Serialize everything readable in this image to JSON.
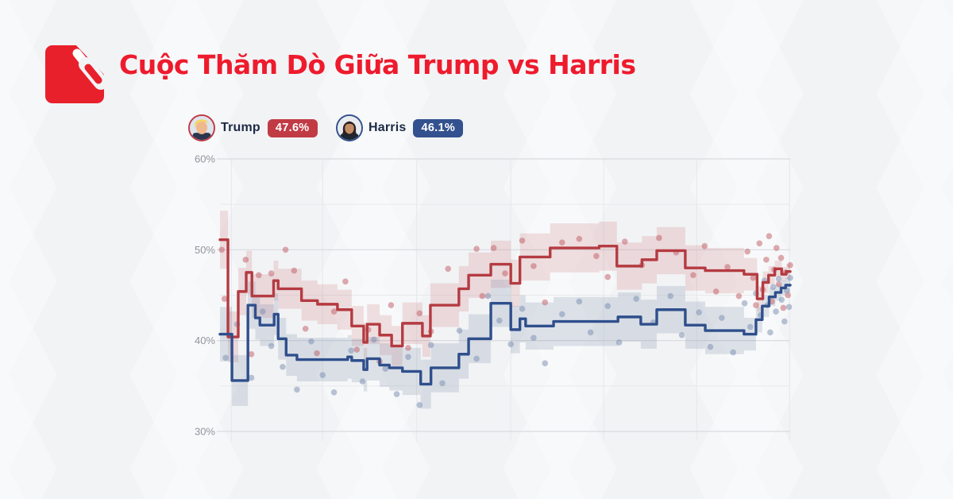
{
  "header": {
    "title": "Cuộc Thăm Dò Giữa Trump vs Harris",
    "title_color": "#ee1b2d",
    "logo_color": "#e8202c"
  },
  "legend": {
    "items": [
      {
        "id": "trump",
        "name": "Trump",
        "value": "47.6%",
        "badge_color": "#c13b45",
        "ring_color": "#c13b45"
      },
      {
        "id": "harris",
        "name": "Harris",
        "value": "46.1%",
        "badge_color": "#33518e",
        "ring_color": "#33518e"
      }
    ]
  },
  "colors": {
    "trump_line": "#b43b41",
    "trump_band": "rgba(186,70,77,0.15)",
    "trump_dot": "rgba(192,90,97,0.5)",
    "harris_line": "#2f4f8c",
    "harris_band": "rgba(110,130,162,0.20)",
    "harris_dot": "rgba(120,140,175,0.5)",
    "grid_major": "#d9dbdf",
    "grid_minor": "#e8e9ec",
    "axis_label": "#8f959d"
  },
  "chart_data": {
    "type": "line",
    "title": "Trump vs Harris polling average",
    "xlabel": "",
    "ylabel": "",
    "ylim": [
      30,
      60
    ],
    "grid": true,
    "legend_position": "top-left",
    "y_axis": {
      "major": [
        {
          "v": 60,
          "label": "60%"
        },
        {
          "v": 50,
          "label": "50%"
        },
        {
          "v": 40,
          "label": "40%"
        },
        {
          "v": 30,
          "label": "30%"
        }
      ],
      "minor": [
        55,
        45,
        35
      ]
    },
    "x_gridlines": [
      2,
      18,
      34.5,
      51,
      67.3,
      83.6,
      99.9
    ],
    "series": [
      {
        "name": "Trump",
        "final_value": 47.6,
        "points": [
          [
            0,
            51.1,
            3.2
          ],
          [
            1.4,
            40.4,
            2.8
          ],
          [
            3.2,
            45.4,
            2.6
          ],
          [
            4.6,
            47.5,
            2.4
          ],
          [
            5.6,
            44.9,
            2.4
          ],
          [
            9.4,
            46.6,
            2.2
          ],
          [
            10.2,
            45.7,
            2.2
          ],
          [
            14.3,
            44.4,
            2.2
          ],
          [
            17.1,
            44.0,
            2.2
          ],
          [
            20.6,
            43.4,
            2.2
          ],
          [
            23.1,
            41.6,
            2.2
          ],
          [
            25.2,
            39.8,
            2.2
          ],
          [
            25.8,
            41.8,
            2.2
          ],
          [
            28.0,
            40.6,
            2.2
          ],
          [
            30.1,
            39.4,
            2.2
          ],
          [
            32.0,
            41.9,
            2.3
          ],
          [
            35.5,
            40.5,
            2.3
          ],
          [
            36.9,
            43.9,
            2.4
          ],
          [
            41.9,
            45.7,
            2.5
          ],
          [
            43.6,
            47.2,
            2.5
          ],
          [
            47.5,
            48.4,
            2.6
          ],
          [
            51.0,
            46.3,
            2.6
          ],
          [
            52.6,
            49.2,
            2.6
          ],
          [
            57.9,
            50.2,
            2.7
          ],
          [
            66.5,
            50.4,
            2.7
          ],
          [
            69.6,
            48.2,
            2.6
          ],
          [
            74.0,
            48.9,
            2.6
          ],
          [
            76.6,
            49.9,
            2.6
          ],
          [
            81.6,
            48.0,
            2.5
          ],
          [
            85.1,
            47.7,
            2.5
          ],
          [
            91.9,
            47.3,
            1.8
          ],
          [
            94.2,
            44.6,
            1.4
          ],
          [
            95.2,
            46.4,
            1.2
          ],
          [
            96.2,
            47.2,
            1.0
          ],
          [
            97.3,
            47.9,
            0.9
          ],
          [
            98.5,
            47.3,
            0.8
          ],
          [
            99.3,
            47.6,
            0.8
          ]
        ]
      },
      {
        "name": "Harris",
        "final_value": 46.1,
        "points": [
          [
            0,
            40.7,
            3.0
          ],
          [
            2.1,
            35.6,
            2.8
          ],
          [
            4.9,
            43.9,
            2.6
          ],
          [
            6.2,
            42.5,
            2.4
          ],
          [
            7.0,
            41.7,
            2.3
          ],
          [
            9.5,
            42.9,
            2.3
          ],
          [
            10.2,
            40.2,
            2.3
          ],
          [
            11.6,
            38.4,
            2.3
          ],
          [
            13.5,
            37.9,
            2.4
          ],
          [
            22.4,
            38.2,
            2.4
          ],
          [
            23.1,
            37.8,
            2.4
          ],
          [
            25.2,
            36.8,
            2.4
          ],
          [
            25.8,
            38.0,
            2.4
          ],
          [
            28.0,
            37.3,
            2.4
          ],
          [
            29.7,
            37.0,
            2.5
          ],
          [
            32.0,
            36.6,
            2.6
          ],
          [
            35.2,
            35.2,
            2.7
          ],
          [
            37.0,
            37.0,
            2.7
          ],
          [
            41.9,
            38.5,
            2.7
          ],
          [
            43.6,
            40.2,
            2.7
          ],
          [
            47.5,
            44.1,
            2.6
          ],
          [
            51.0,
            41.2,
            2.6
          ],
          [
            52.6,
            42.4,
            2.6
          ],
          [
            53.6,
            41.6,
            2.6
          ],
          [
            58.5,
            42.1,
            2.7
          ],
          [
            69.8,
            42.6,
            2.7
          ],
          [
            73.8,
            41.8,
            2.7
          ],
          [
            76.6,
            43.4,
            2.6
          ],
          [
            81.6,
            41.7,
            2.6
          ],
          [
            85.1,
            41.1,
            2.6
          ],
          [
            91.9,
            40.7,
            1.8
          ],
          [
            94.0,
            42.3,
            1.4
          ],
          [
            95.1,
            43.8,
            1.2
          ],
          [
            96.3,
            44.8,
            1.0
          ],
          [
            97.4,
            45.3,
            0.9
          ],
          [
            98.4,
            45.8,
            0.8
          ],
          [
            99.2,
            46.1,
            0.8
          ]
        ]
      }
    ],
    "scatter": [
      [
        0,
        0.3,
        50.0
      ],
      [
        0,
        0.8,
        44.6
      ],
      [
        0,
        4.5,
        48.9
      ],
      [
        0,
        5.5,
        38.5
      ],
      [
        0,
        6.8,
        47.2
      ],
      [
        0,
        9,
        47.4
      ],
      [
        0,
        11.5,
        50.0
      ],
      [
        0,
        13,
        47.7
      ],
      [
        0,
        15,
        41.3
      ],
      [
        0,
        17,
        38.6
      ],
      [
        0,
        20,
        43.2
      ],
      [
        0,
        22,
        46.5
      ],
      [
        0,
        24,
        39.0
      ],
      [
        0,
        26,
        41.2
      ],
      [
        0,
        28,
        37.7
      ],
      [
        0,
        30,
        43.9
      ],
      [
        0,
        33,
        39.2
      ],
      [
        0,
        35,
        43.0
      ],
      [
        0,
        37,
        41.0
      ],
      [
        0,
        40,
        47.9
      ],
      [
        0,
        45,
        50.1
      ],
      [
        0,
        46,
        44.9
      ],
      [
        0,
        48,
        50.2
      ],
      [
        0,
        50,
        47.4
      ],
      [
        0,
        53,
        51.0
      ],
      [
        0,
        55,
        48.2
      ],
      [
        0,
        57,
        44.2
      ],
      [
        0,
        60,
        50.8
      ],
      [
        0,
        63,
        51.2
      ],
      [
        0,
        66,
        49.3
      ],
      [
        0,
        68,
        47.0
      ],
      [
        0,
        71,
        50.9
      ],
      [
        0,
        74,
        48.3
      ],
      [
        0,
        77,
        51.3
      ],
      [
        0,
        80,
        49.7
      ],
      [
        0,
        83,
        47.2
      ],
      [
        0,
        85,
        50.4
      ],
      [
        0,
        87,
        45.4
      ],
      [
        0,
        89,
        48.1
      ],
      [
        0,
        91,
        44.9
      ],
      [
        0,
        92.5,
        49.8
      ],
      [
        0,
        93.5,
        46.9
      ],
      [
        0,
        94,
        43.9
      ],
      [
        0,
        94.6,
        50.7
      ],
      [
        0,
        95.2,
        45.6
      ],
      [
        0,
        95.8,
        48.9
      ],
      [
        0,
        96.3,
        51.5
      ],
      [
        0,
        96.8,
        44.3
      ],
      [
        0,
        97.2,
        47.8
      ],
      [
        0,
        97.6,
        50.2
      ],
      [
        0,
        98,
        46.2
      ],
      [
        0,
        98.4,
        49.1
      ],
      [
        0,
        98.8,
        43.6
      ],
      [
        0,
        99.2,
        47.5
      ],
      [
        0,
        99.6,
        45.0
      ],
      [
        0,
        100,
        48.3
      ],
      [
        1,
        1.0,
        38.1
      ],
      [
        1,
        3,
        41.8
      ],
      [
        1,
        5.5,
        35.9
      ],
      [
        1,
        7.5,
        43.2
      ],
      [
        1,
        9,
        39.4
      ],
      [
        1,
        11,
        37.1
      ],
      [
        1,
        13.5,
        34.6
      ],
      [
        1,
        16,
        39.9
      ],
      [
        1,
        18,
        36.2
      ],
      [
        1,
        20,
        34.3
      ],
      [
        1,
        23,
        38.9
      ],
      [
        1,
        25,
        35.5
      ],
      [
        1,
        27,
        40.1
      ],
      [
        1,
        29,
        36.9
      ],
      [
        1,
        31,
        34.1
      ],
      [
        1,
        33,
        38.2
      ],
      [
        1,
        35,
        32.9
      ],
      [
        1,
        37,
        39.5
      ],
      [
        1,
        39,
        35.3
      ],
      [
        1,
        42,
        41.1
      ],
      [
        1,
        45,
        38.0
      ],
      [
        1,
        47,
        44.9
      ],
      [
        1,
        49,
        42.2
      ],
      [
        1,
        51,
        39.6
      ],
      [
        1,
        53,
        43.5
      ],
      [
        1,
        55,
        40.3
      ],
      [
        1,
        57,
        37.5
      ],
      [
        1,
        60,
        42.9
      ],
      [
        1,
        63,
        44.3
      ],
      [
        1,
        65,
        40.9
      ],
      [
        1,
        68,
        43.8
      ],
      [
        1,
        70,
        39.8
      ],
      [
        1,
        73,
        44.6
      ],
      [
        1,
        76,
        42.0
      ],
      [
        1,
        79,
        44.9
      ],
      [
        1,
        81,
        40.6
      ],
      [
        1,
        84,
        43.1
      ],
      [
        1,
        86,
        39.3
      ],
      [
        1,
        88,
        42.5
      ],
      [
        1,
        90,
        38.7
      ],
      [
        1,
        92,
        44.1
      ],
      [
        1,
        93,
        41.5
      ],
      [
        1,
        94,
        45.2
      ],
      [
        1,
        94.8,
        42.8
      ],
      [
        1,
        95.5,
        46.6
      ],
      [
        1,
        96,
        43.9
      ],
      [
        1,
        96.5,
        40.9
      ],
      [
        1,
        97,
        45.9
      ],
      [
        1,
        97.5,
        43.2
      ],
      [
        1,
        98,
        46.8
      ],
      [
        1,
        98.5,
        44.5
      ],
      [
        1,
        99,
        42.1
      ],
      [
        1,
        99.4,
        45.5
      ],
      [
        1,
        99.8,
        43.7
      ],
      [
        1,
        100,
        46.9
      ]
    ]
  }
}
